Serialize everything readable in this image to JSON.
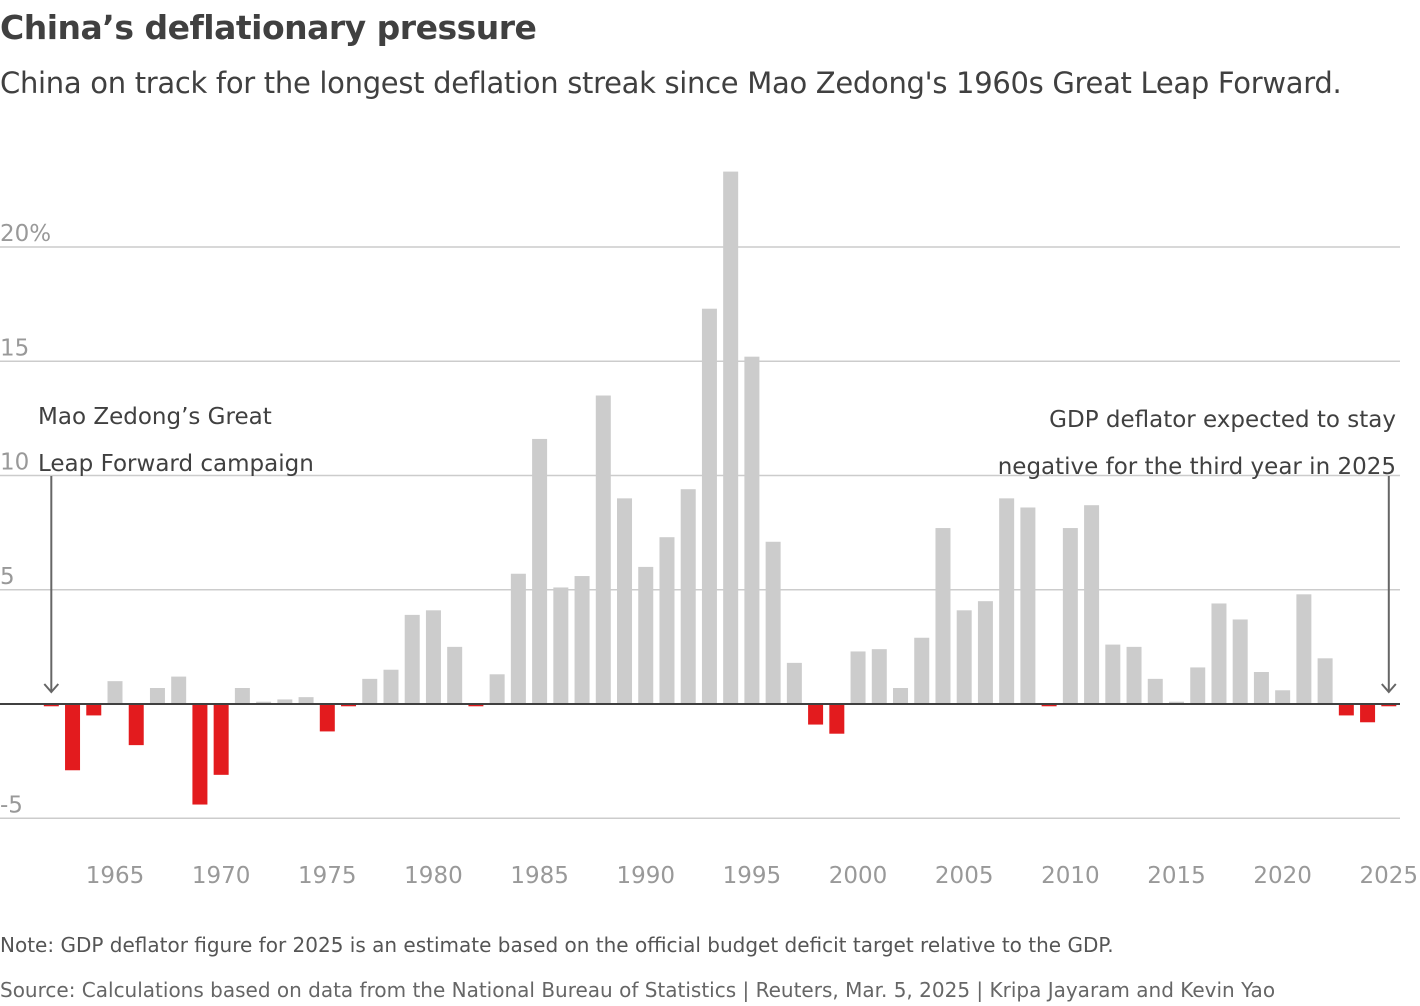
{
  "title": "China’s deflationary pressure",
  "subtitle": "China on track for the longest deflation streak since Mao Zedong's 1960s Great Leap Forward.",
  "note": "Note: GDP deflator figure for 2025 is an estimate based on the official budget deficit target relative to the GDP.",
  "source": "Source: Calculations based on data from the National Bureau of Statistics | Reuters, Mar. 5, 2025 | Kripa Jayaram and Kevin Yao",
  "colors": {
    "positive": "#cccccc",
    "negative": "#e31b1e",
    "grid": "#cccccc",
    "zero_line": "#404040",
    "text": "#404040"
  },
  "chart_data": {
    "type": "bar",
    "title": "China’s deflationary pressure",
    "xlabel": "",
    "ylabel": "",
    "ylim": [
      -5,
      23.5
    ],
    "grid": true,
    "y_ticks": [
      {
        "value": 20,
        "label": "20%"
      },
      {
        "value": 15,
        "label": "15"
      },
      {
        "value": 10,
        "label": "10"
      },
      {
        "value": 5,
        "label": "5"
      },
      {
        "value": -5,
        "label": "-5"
      }
    ],
    "x_ticks": [
      1965,
      1970,
      1975,
      1980,
      1985,
      1990,
      1995,
      2000,
      2005,
      2010,
      2015,
      2020,
      2025
    ],
    "categories": [
      1962,
      1963,
      1964,
      1965,
      1966,
      1967,
      1968,
      1969,
      1970,
      1971,
      1972,
      1973,
      1974,
      1975,
      1976,
      1977,
      1978,
      1979,
      1980,
      1981,
      1982,
      1983,
      1984,
      1985,
      1986,
      1987,
      1988,
      1989,
      1990,
      1991,
      1992,
      1993,
      1994,
      1995,
      1996,
      1997,
      1998,
      1999,
      2000,
      2001,
      2002,
      2003,
      2004,
      2005,
      2006,
      2007,
      2008,
      2009,
      2010,
      2011,
      2012,
      2013,
      2014,
      2015,
      2016,
      2017,
      2018,
      2019,
      2020,
      2021,
      2022,
      2023,
      2024,
      2025
    ],
    "values": [
      -0.1,
      -2.9,
      -0.5,
      1.0,
      -1.8,
      0.7,
      1.2,
      -4.4,
      -3.1,
      0.7,
      0.1,
      0.2,
      0.3,
      -1.2,
      -0.1,
      1.1,
      1.5,
      3.9,
      4.1,
      2.5,
      -0.1,
      1.3,
      5.7,
      11.6,
      5.1,
      5.6,
      13.5,
      9.0,
      6.0,
      7.3,
      9.4,
      17.3,
      23.3,
      15.2,
      7.1,
      1.8,
      -0.9,
      -1.3,
      2.3,
      2.4,
      0.7,
      2.9,
      7.7,
      4.1,
      4.5,
      9.0,
      8.6,
      -0.1,
      7.7,
      8.7,
      2.6,
      2.5,
      1.1,
      0.1,
      1.6,
      4.4,
      3.7,
      1.4,
      0.6,
      4.8,
      2.0,
      -0.5,
      -0.8,
      -0.1
    ],
    "annotations": [
      {
        "year": 1962,
        "lines": [
          "Mao Zedong’s Great",
          "Leap Forward campaign"
        ]
      },
      {
        "year": 2025,
        "lines": [
          "GDP deflator expected to stay",
          "negative for the third year in 2025"
        ]
      }
    ]
  }
}
